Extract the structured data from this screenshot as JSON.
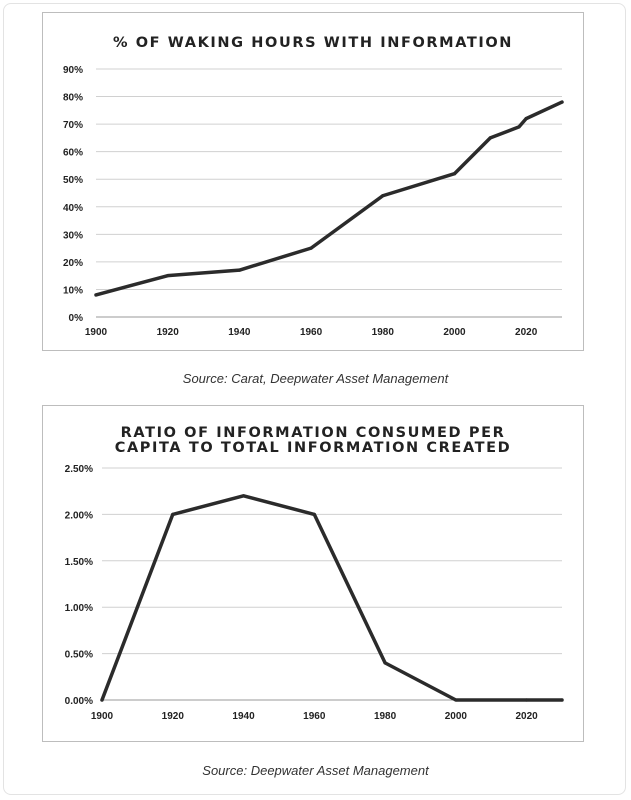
{
  "charts": [
    {
      "caption": "Source: Carat, Deepwater Asset Management",
      "chart_data": {
        "type": "line",
        "title": "% OF WAKING HOURS WITH INFORMATION",
        "xlabel": "",
        "ylabel": "",
        "x": [
          1900,
          1920,
          1940,
          1960,
          1980,
          2000,
          2010,
          2018,
          2020,
          2030
        ],
        "series": [
          {
            "name": "% of waking hours",
            "values": [
              8,
              15,
              17,
              25,
              44,
              52,
              65,
              69,
              72,
              78
            ]
          }
        ],
        "xlim": [
          1900,
          2030
        ],
        "ylim": [
          0,
          90
        ],
        "xticks": [
          1900,
          1920,
          1940,
          1960,
          1980,
          2000,
          2020
        ],
        "yticks": [
          0,
          10,
          20,
          30,
          40,
          50,
          60,
          70,
          80,
          90
        ],
        "xtick_labels": [
          "1900",
          "1920",
          "1940",
          "1960",
          "1980",
          "2000",
          "2020"
        ],
        "ytick_labels": [
          "0%",
          "10%",
          "20%",
          "30%",
          "40%",
          "50%",
          "60%",
          "70%",
          "80%",
          "90%"
        ],
        "grid": true,
        "line_color": "#2b2b2b"
      }
    },
    {
      "caption": "Source: Deepwater Asset Management",
      "chart_data": {
        "type": "line",
        "title_lines": [
          "RATIO OF INFORMATION CONSUMED PER",
          "CAPITA TO TOTAL INFORMATION CREATED"
        ],
        "xlabel": "",
        "ylabel": "",
        "x": [
          1900,
          1920,
          1940,
          1960,
          1980,
          2000,
          2020,
          2030
        ],
        "series": [
          {
            "name": "ratio",
            "values": [
              0.0,
              2.0,
              2.2,
              2.0,
              0.4,
              0.0,
              0.0,
              0.0
            ]
          }
        ],
        "xlim": [
          1900,
          2030
        ],
        "ylim": [
          0,
          2.5
        ],
        "xticks": [
          1900,
          1920,
          1940,
          1960,
          1980,
          2000,
          2020
        ],
        "yticks": [
          0,
          0.5,
          1.0,
          1.5,
          2.0,
          2.5
        ],
        "xtick_labels": [
          "1900",
          "1920",
          "1940",
          "1960",
          "1980",
          "2000",
          "2020"
        ],
        "ytick_labels": [
          "0.00%",
          "0.50%",
          "1.00%",
          "1.50%",
          "2.00%",
          "2.50%"
        ],
        "grid": true,
        "line_color": "#2b2b2b"
      }
    }
  ]
}
